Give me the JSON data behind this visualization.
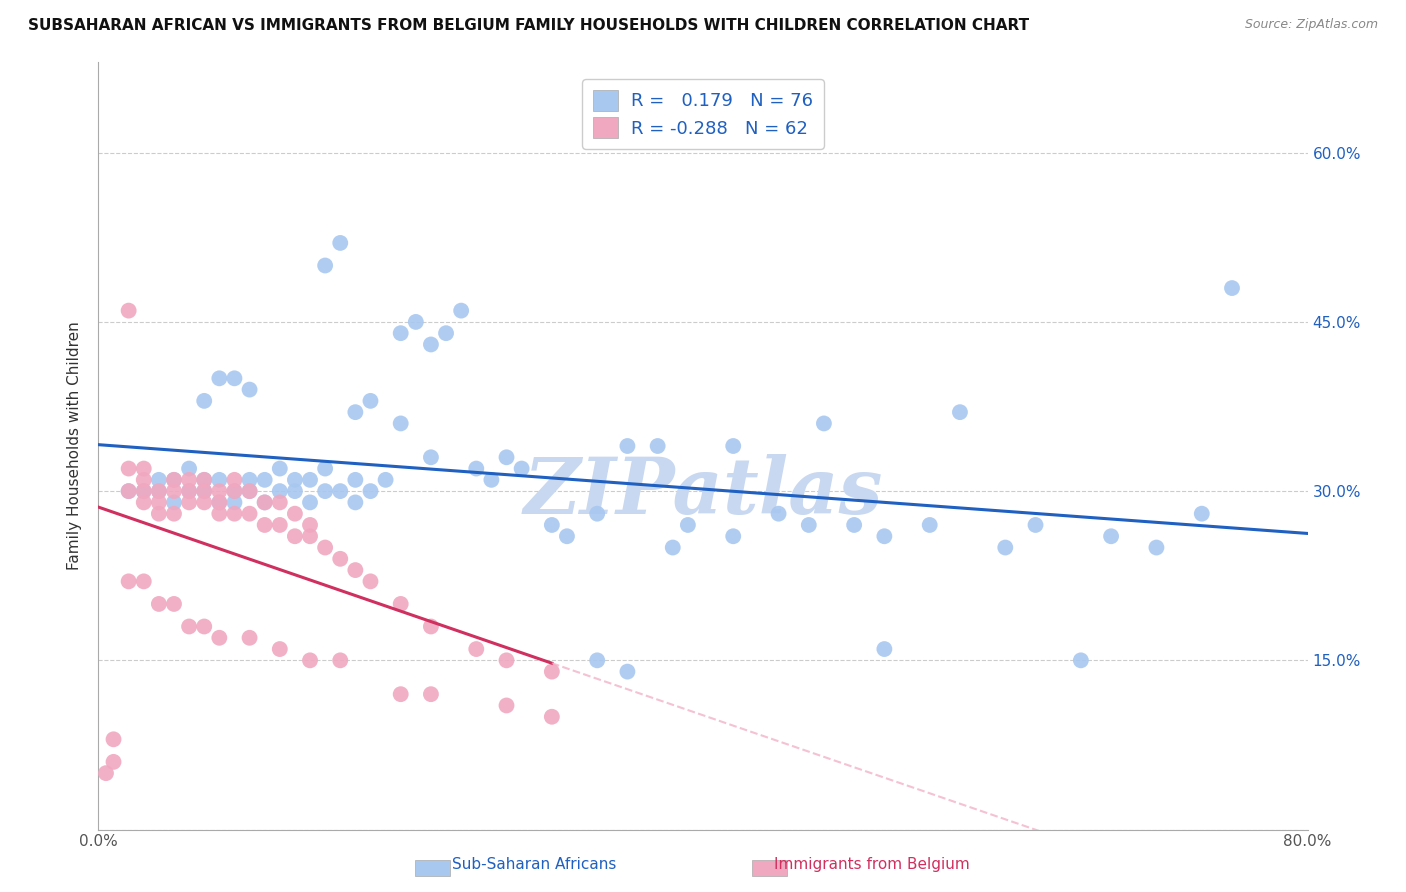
{
  "title": "SUBSAHARAN AFRICAN VS IMMIGRANTS FROM BELGIUM FAMILY HOUSEHOLDS WITH CHILDREN CORRELATION CHART",
  "source": "Source: ZipAtlas.com",
  "xlabel_bottom_blue": "Sub-Saharan Africans",
  "xlabel_bottom_pink": "Immigrants from Belgium",
  "ylabel": "Family Households with Children",
  "xmin": 0.0,
  "xmax": 0.8,
  "ymin": 0.0,
  "ymax": 0.68,
  "yticks": [
    0.0,
    0.15,
    0.3,
    0.45,
    0.6
  ],
  "ytick_labels_right": [
    "",
    "15.0%",
    "30.0%",
    "45.0%",
    "60.0%"
  ],
  "xticks": [
    0.0,
    0.2,
    0.4,
    0.6,
    0.8
  ],
  "xtick_labels": [
    "0.0%",
    "",
    "",
    "",
    "80.0%"
  ],
  "blue_R": 0.179,
  "blue_N": 76,
  "pink_R": -0.288,
  "pink_N": 62,
  "blue_color": "#A8C8F0",
  "pink_color": "#F0A8C0",
  "blue_line_color": "#2060C0",
  "pink_line_color": "#D03060",
  "pink_line_dashed_color": "#F0A8C0",
  "watermark": "ZIPatlas",
  "watermark_color": "#C8D8F0",
  "blue_scatter_x": [
    0.02,
    0.03,
    0.04,
    0.04,
    0.05,
    0.05,
    0.06,
    0.06,
    0.07,
    0.07,
    0.08,
    0.08,
    0.09,
    0.09,
    0.1,
    0.1,
    0.11,
    0.11,
    0.12,
    0.12,
    0.13,
    0.13,
    0.14,
    0.14,
    0.15,
    0.15,
    0.16,
    0.17,
    0.17,
    0.18,
    0.19,
    0.2,
    0.21,
    0.22,
    0.23,
    0.24,
    0.25,
    0.26,
    0.27,
    0.28,
    0.3,
    0.31,
    0.33,
    0.35,
    0.37,
    0.39,
    0.42,
    0.45,
    0.47,
    0.48,
    0.5,
    0.52,
    0.55,
    0.57,
    0.6,
    0.62,
    0.65,
    0.67,
    0.7,
    0.73,
    0.07,
    0.08,
    0.09,
    0.1,
    0.15,
    0.16,
    0.17,
    0.18,
    0.2,
    0.22,
    0.33,
    0.35,
    0.38,
    0.42,
    0.52,
    0.75
  ],
  "blue_scatter_y": [
    0.3,
    0.3,
    0.3,
    0.31,
    0.29,
    0.31,
    0.3,
    0.32,
    0.3,
    0.31,
    0.29,
    0.31,
    0.3,
    0.29,
    0.3,
    0.31,
    0.29,
    0.31,
    0.3,
    0.32,
    0.31,
    0.3,
    0.29,
    0.31,
    0.3,
    0.32,
    0.3,
    0.31,
    0.29,
    0.3,
    0.31,
    0.44,
    0.45,
    0.43,
    0.44,
    0.46,
    0.32,
    0.31,
    0.33,
    0.32,
    0.27,
    0.26,
    0.28,
    0.34,
    0.34,
    0.27,
    0.26,
    0.28,
    0.27,
    0.36,
    0.27,
    0.26,
    0.27,
    0.37,
    0.25,
    0.27,
    0.15,
    0.26,
    0.25,
    0.28,
    0.38,
    0.4,
    0.4,
    0.39,
    0.5,
    0.52,
    0.37,
    0.38,
    0.36,
    0.33,
    0.15,
    0.14,
    0.25,
    0.34,
    0.16,
    0.48
  ],
  "pink_scatter_x": [
    0.005,
    0.01,
    0.01,
    0.02,
    0.02,
    0.02,
    0.03,
    0.03,
    0.03,
    0.03,
    0.04,
    0.04,
    0.04,
    0.05,
    0.05,
    0.05,
    0.06,
    0.06,
    0.06,
    0.07,
    0.07,
    0.07,
    0.08,
    0.08,
    0.08,
    0.09,
    0.09,
    0.09,
    0.1,
    0.1,
    0.11,
    0.11,
    0.12,
    0.12,
    0.13,
    0.13,
    0.14,
    0.14,
    0.15,
    0.16,
    0.17,
    0.18,
    0.2,
    0.22,
    0.25,
    0.27,
    0.3,
    0.02,
    0.03,
    0.04,
    0.05,
    0.06,
    0.07,
    0.08,
    0.1,
    0.12,
    0.14,
    0.16,
    0.2,
    0.22,
    0.27,
    0.3
  ],
  "pink_scatter_y": [
    0.05,
    0.06,
    0.08,
    0.3,
    0.32,
    0.46,
    0.29,
    0.31,
    0.3,
    0.32,
    0.28,
    0.3,
    0.29,
    0.3,
    0.28,
    0.31,
    0.29,
    0.31,
    0.3,
    0.29,
    0.31,
    0.3,
    0.28,
    0.3,
    0.29,
    0.28,
    0.3,
    0.31,
    0.28,
    0.3,
    0.27,
    0.29,
    0.27,
    0.29,
    0.26,
    0.28,
    0.26,
    0.27,
    0.25,
    0.24,
    0.23,
    0.22,
    0.2,
    0.18,
    0.16,
    0.15,
    0.14,
    0.22,
    0.22,
    0.2,
    0.2,
    0.18,
    0.18,
    0.17,
    0.17,
    0.16,
    0.15,
    0.15,
    0.12,
    0.12,
    0.11,
    0.1
  ]
}
